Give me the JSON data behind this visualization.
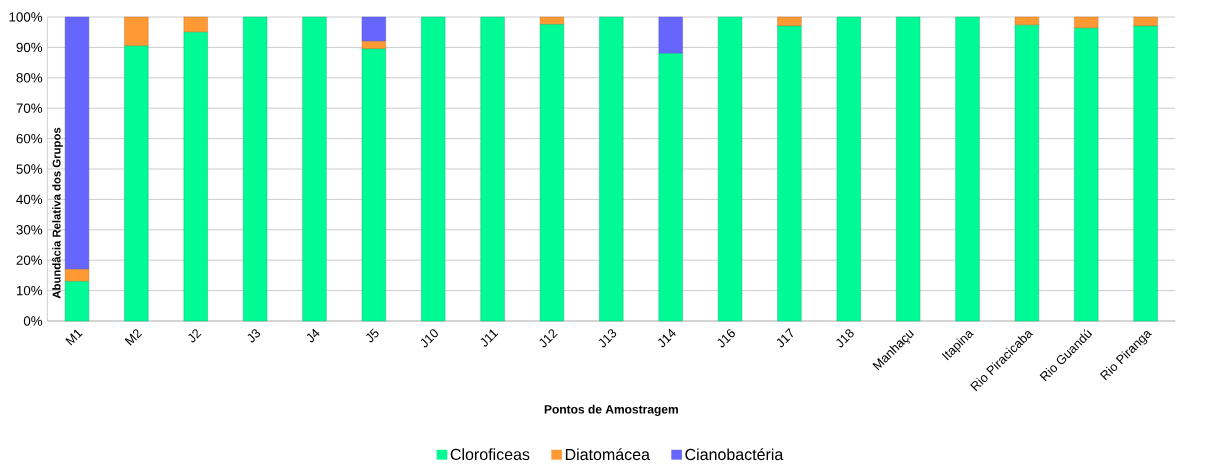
{
  "chart_data": {
    "type": "bar",
    "stacked": true,
    "xlabel": "Pontos de Amostragem",
    "ylabel": "Abundâcia  Relativa dos Grupos",
    "categories": [
      "M1",
      "M2",
      "J2",
      "J3",
      "J4",
      "J5",
      "J10",
      "J11",
      "J12",
      "J13",
      "J14",
      "J16",
      "J17",
      "J18",
      "Manhaçu",
      "Itapina",
      "Rio Piracicaba",
      "Rio Guandú",
      "Rio Piranga"
    ],
    "series": [
      {
        "name": "Cloroficeas",
        "color": "#00fa96",
        "values": [
          13,
          90.5,
          95,
          100,
          100,
          89.5,
          100,
          100,
          97.5,
          100,
          88,
          100,
          97,
          100,
          100,
          100,
          97.3,
          96.3,
          97
        ]
      },
      {
        "name": "Diatomácea",
        "color": "#ff9933",
        "values": [
          4,
          9.5,
          5,
          0,
          0,
          2.5,
          0,
          0,
          2.5,
          0,
          0,
          0,
          3,
          0,
          0,
          0,
          2.7,
          3.7,
          3
        ]
      },
      {
        "name": "Cianobactéria",
        "color": "#6666ff",
        "values": [
          83,
          0,
          0,
          0,
          0,
          8,
          0,
          0,
          0,
          0,
          12,
          0,
          0,
          0,
          0,
          0,
          0,
          0,
          0
        ]
      }
    ],
    "ylim": [
      0,
      100
    ],
    "yticks": [
      {
        "value": 0,
        "label": "0%"
      },
      {
        "value": 10,
        "label": "10%"
      },
      {
        "value": 20,
        "label": "20%"
      },
      {
        "value": 30,
        "label": "30%"
      },
      {
        "value": 40,
        "label": "40%"
      },
      {
        "value": 50,
        "label": "50%"
      },
      {
        "value": 60,
        "label": "60%"
      },
      {
        "value": 70,
        "label": "70%"
      },
      {
        "value": 80,
        "label": "80%"
      },
      {
        "value": 90,
        "label": "90%"
      },
      {
        "value": 100,
        "label": "100%"
      }
    ],
    "grid": "y",
    "legend": "bottom"
  }
}
